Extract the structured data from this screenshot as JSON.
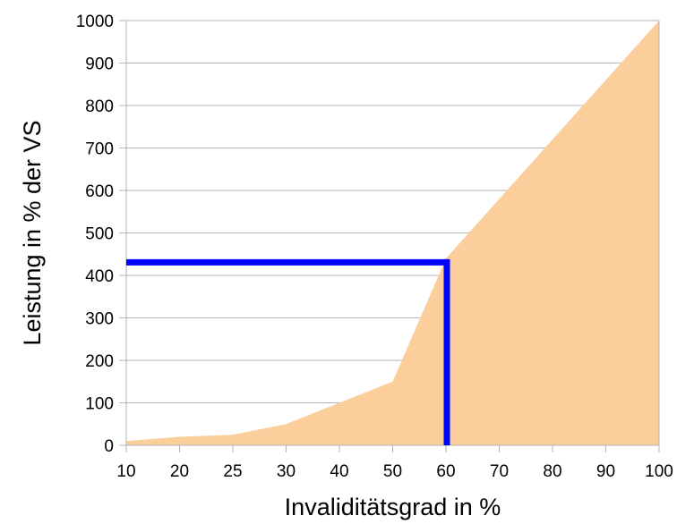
{
  "chart_data": {
    "type": "area",
    "title": "",
    "xlabel": "Invaliditätsgrad in %",
    "ylabel": "Leistung in % der VS",
    "categories": [
      "10",
      "20",
      "25",
      "30",
      "40",
      "50",
      "60",
      "70",
      "80",
      "90",
      "100"
    ],
    "x": [
      10,
      20,
      25,
      30,
      40,
      50,
      60,
      70,
      80,
      90,
      100
    ],
    "series": [
      {
        "values": [
          10,
          20,
          25,
          50,
          100,
          150,
          440,
          580,
          720,
          860,
          1000
        ],
        "color": "#FCCE9C"
      }
    ],
    "yticks": [
      0,
      100,
      200,
      300,
      400,
      500,
      600,
      700,
      800,
      900,
      1000
    ],
    "ylim": [
      0,
      1000
    ],
    "xlim": [
      10,
      100
    ],
    "grid": "horizontal",
    "legend": "none",
    "marker": {
      "x": 60,
      "y": 435,
      "color": "#0000FF",
      "style": "horizontal line from y-axis to x, vertical line down to x-axis"
    }
  }
}
